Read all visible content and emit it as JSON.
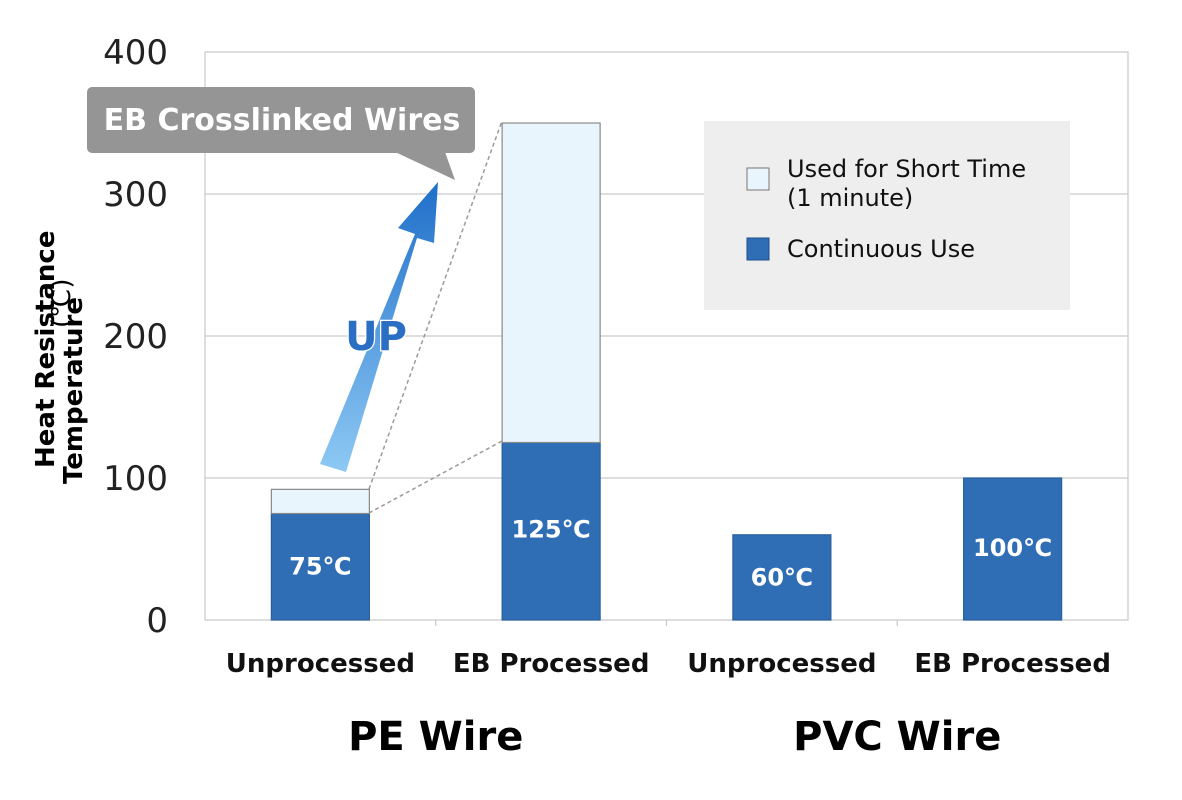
{
  "chart_data": {
    "type": "bar",
    "stacked": true,
    "ylabel_line1": "Heat Resistance",
    "ylabel_line2": "Temperature",
    "yunit": "(℃)",
    "ylim": [
      0,
      400
    ],
    "yticks": [
      "0",
      "100",
      "200",
      "300",
      "400"
    ],
    "grid": true,
    "categories": [
      "Unprocessed",
      "EB Processed",
      "Unprocessed",
      "EB Processed"
    ],
    "groups": [
      {
        "label": "PE Wire",
        "categories": [
          0,
          1
        ]
      },
      {
        "label": "PVC Wire",
        "categories": [
          2,
          3
        ]
      }
    ],
    "series": [
      {
        "name": "Continuous Use",
        "color": "#2f6db5",
        "values": [
          75,
          125,
          60,
          100
        ]
      },
      {
        "name": "Used for Short Time (1 minute)",
        "color": "#e8f5fc",
        "values": [
          17,
          225,
          0,
          0
        ]
      }
    ],
    "bar_labels": [
      "75℃",
      "125℃",
      "60℃",
      "100℃"
    ],
    "legend": {
      "placement": "top-right",
      "items": [
        {
          "line1": "Used for Short Time",
          "line2": "(1 minute)",
          "color": "#e8f5fc"
        },
        {
          "line1": "Continuous Use",
          "line2": "",
          "color": "#2f6db5"
        }
      ]
    },
    "annotations": {
      "callout": "EB Crosslinked Wires",
      "arrow_text": "UP",
      "callout_color": "#959595",
      "arrow_color": "#2b7fd4"
    }
  }
}
